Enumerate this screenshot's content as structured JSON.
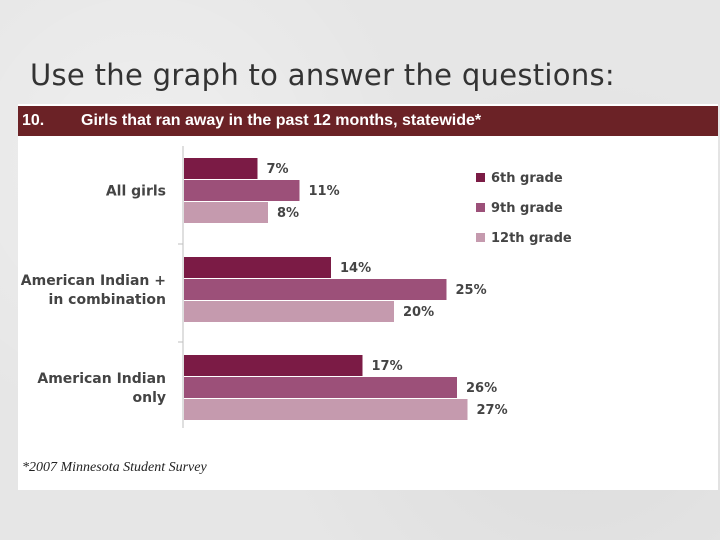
{
  "slide": {
    "title": "Use the graph to answer the questions:"
  },
  "header": {
    "number": "10.",
    "title": "Girls that ran away in the past 12 months, statewide*"
  },
  "footnote": "*2007 Minnesota Student Survey",
  "chart_data": {
    "type": "bar",
    "orientation": "horizontal",
    "title": "Girls that ran away in the past 12 months, statewide*",
    "categories": [
      [
        "All girls"
      ],
      [
        "American Indian +",
        "in combination"
      ],
      [
        "American Indian",
        "only"
      ]
    ],
    "category_names": [
      "All girls",
      "American Indian + in combination",
      "American Indian only"
    ],
    "series": [
      {
        "name": "6th grade",
        "values": [
          7,
          14,
          17
        ],
        "labels": [
          "7%",
          "14%",
          "17%"
        ],
        "color": "#7b1b45"
      },
      {
        "name": "9th grade",
        "values": [
          11,
          25,
          26
        ],
        "labels": [
          "11%",
          "25%",
          "26%"
        ],
        "color": "#9c5079"
      },
      {
        "name": "12th grade",
        "values": [
          8,
          20,
          27
        ],
        "labels": [
          "8%",
          "20%",
          "27%"
        ],
        "color": "#c59aae"
      }
    ],
    "xlim": [
      0,
      30
    ],
    "legend_position": "right",
    "grid": false
  }
}
